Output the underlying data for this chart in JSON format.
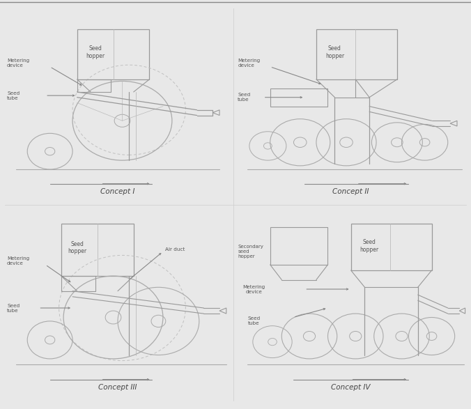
{
  "background_color": "#e8e8e8",
  "panel_bg": "#e8e8e8",
  "line_color": "#b0b0b0",
  "sketch_color": "#b0b0b0",
  "dark_line": "#909090",
  "text_color": "#555555",
  "title_color": "#444444",
  "border_color": "#cccccc",
  "concepts": [
    "Concept I",
    "Concept II",
    "Concept III",
    "Concept IV"
  ]
}
